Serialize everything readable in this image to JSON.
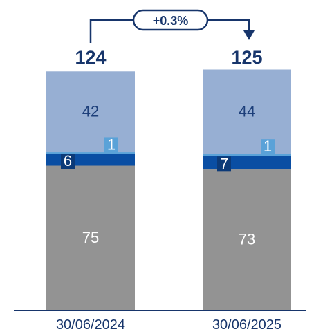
{
  "chart_data": {
    "type": "bar",
    "stacked": true,
    "categories": [
      "30/06/2024",
      "30/06/2025"
    ],
    "totals": [
      "124",
      "125"
    ],
    "series": [
      {
        "values": [
          75,
          73
        ],
        "color": "#939393",
        "label_color": "#ffffff"
      },
      {
        "values": [
          6,
          7
        ],
        "color": "#0a4ea3",
        "label_color": "#ffffff",
        "label_badge": "#0c3a78"
      },
      {
        "values": [
          1,
          1
        ],
        "color": "#5aa2d8",
        "label_color": "#ffffff",
        "label_badge": "#5aa2d8"
      },
      {
        "values": [
          42,
          44
        ],
        "color": "#97afd3",
        "label_color": "#1d3f7a"
      }
    ],
    "change_label": "+0.3%",
    "total_color": "#17356b",
    "axis_color": "#17356b",
    "legend": "none",
    "grid": false
  }
}
